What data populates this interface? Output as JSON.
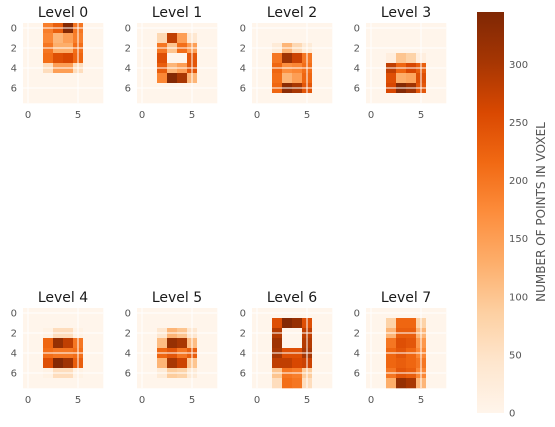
{
  "chart_data": {
    "type": "heatmap",
    "colormap": "Oranges",
    "colorbar_label": "NUMBER OF POINTS IN VOXEL",
    "colorbar_ticks": [
      0,
      50,
      100,
      150,
      200,
      250,
      300
    ],
    "vmin": 0,
    "vmax": 345,
    "grid": true,
    "grid_shape": [
      8,
      8
    ],
    "x_ticks": [
      0,
      5
    ],
    "y_ticks": [
      0,
      2,
      4,
      6
    ],
    "panels": [
      {
        "title": "Level 0",
        "values": [
          [
            0,
            0,
            190,
            230,
            340,
            200,
            0,
            0
          ],
          [
            0,
            0,
            180,
            120,
            150,
            190,
            0,
            0
          ],
          [
            0,
            0,
            200,
            130,
            130,
            210,
            0,
            0
          ],
          [
            0,
            0,
            210,
            250,
            260,
            220,
            0,
            0
          ],
          [
            0,
            0,
            60,
            150,
            150,
            60,
            0,
            0
          ],
          [
            0,
            0,
            0,
            0,
            0,
            0,
            0,
            0
          ],
          [
            0,
            0,
            0,
            0,
            0,
            0,
            0,
            0
          ],
          [
            0,
            0,
            0,
            0,
            0,
            0,
            0,
            0
          ]
        ]
      },
      {
        "title": "Level 1",
        "values": [
          [
            0,
            0,
            0,
            0,
            0,
            0,
            0,
            0
          ],
          [
            0,
            0,
            70,
            280,
            150,
            40,
            0,
            0
          ],
          [
            0,
            0,
            200,
            100,
            210,
            150,
            0,
            0
          ],
          [
            0,
            0,
            250,
            0,
            0,
            240,
            0,
            0
          ],
          [
            0,
            0,
            230,
            120,
            150,
            240,
            0,
            0
          ],
          [
            0,
            0,
            180,
            340,
            300,
            120,
            0,
            0
          ],
          [
            0,
            0,
            0,
            0,
            0,
            0,
            0,
            0
          ],
          [
            0,
            0,
            0,
            0,
            0,
            0,
            0,
            0
          ]
        ]
      },
      {
        "title": "Level 2",
        "values": [
          [
            0,
            0,
            0,
            0,
            0,
            0,
            0,
            0
          ],
          [
            0,
            0,
            0,
            0,
            0,
            0,
            0,
            0
          ],
          [
            0,
            0,
            30,
            120,
            70,
            30,
            0,
            0
          ],
          [
            0,
            0,
            200,
            310,
            270,
            200,
            0,
            0
          ],
          [
            0,
            0,
            220,
            170,
            180,
            210,
            0,
            0
          ],
          [
            0,
            0,
            210,
            120,
            150,
            220,
            0,
            0
          ],
          [
            0,
            0,
            220,
            330,
            300,
            240,
            0,
            0
          ],
          [
            0,
            0,
            0,
            0,
            0,
            0,
            0,
            0
          ]
        ]
      },
      {
        "title": "Level 3",
        "values": [
          [
            0,
            0,
            0,
            0,
            0,
            0,
            0,
            0
          ],
          [
            0,
            0,
            0,
            0,
            0,
            0,
            0,
            0
          ],
          [
            0,
            0,
            0,
            0,
            0,
            0,
            0,
            0
          ],
          [
            0,
            0,
            20,
            100,
            80,
            20,
            0,
            0
          ],
          [
            0,
            0,
            280,
            220,
            260,
            230,
            0,
            0
          ],
          [
            0,
            0,
            250,
            130,
            140,
            250,
            0,
            0
          ],
          [
            0,
            0,
            260,
            340,
            310,
            240,
            0,
            0
          ],
          [
            0,
            0,
            0,
            0,
            0,
            0,
            0,
            0
          ]
        ]
      },
      {
        "title": "Level 4",
        "values": [
          [
            0,
            0,
            0,
            0,
            0,
            0,
            0,
            0
          ],
          [
            0,
            0,
            0,
            0,
            0,
            0,
            0,
            0
          ],
          [
            0,
            0,
            10,
            60,
            60,
            10,
            0,
            0
          ],
          [
            0,
            0,
            220,
            320,
            280,
            200,
            0,
            0
          ],
          [
            0,
            0,
            210,
            200,
            200,
            210,
            0,
            0
          ],
          [
            0,
            0,
            250,
            340,
            310,
            230,
            0,
            0
          ],
          [
            0,
            0,
            10,
            60,
            60,
            10,
            0,
            0
          ],
          [
            0,
            0,
            0,
            0,
            0,
            0,
            0,
            0
          ]
        ]
      },
      {
        "title": "Level 5",
        "values": [
          [
            0,
            0,
            0,
            0,
            0,
            0,
            0,
            0
          ],
          [
            0,
            0,
            0,
            0,
            0,
            0,
            0,
            0
          ],
          [
            0,
            0,
            40,
            120,
            100,
            40,
            0,
            0
          ],
          [
            0,
            0,
            110,
            320,
            300,
            110,
            0,
            0
          ],
          [
            0,
            0,
            220,
            240,
            200,
            230,
            0,
            0
          ],
          [
            0,
            0,
            120,
            300,
            270,
            100,
            0,
            0
          ],
          [
            0,
            0,
            30,
            90,
            80,
            30,
            0,
            0
          ],
          [
            0,
            0,
            0,
            0,
            0,
            0,
            0,
            0
          ]
        ]
      },
      {
        "title": "Level 6",
        "values": [
          [
            0,
            0,
            0,
            0,
            0,
            0,
            0,
            0
          ],
          [
            0,
            0,
            250,
            340,
            320,
            250,
            0,
            0
          ],
          [
            0,
            0,
            290,
            0,
            0,
            280,
            0,
            0
          ],
          [
            0,
            0,
            310,
            0,
            0,
            290,
            0,
            0
          ],
          [
            0,
            0,
            300,
            250,
            250,
            300,
            0,
            0
          ],
          [
            0,
            0,
            280,
            280,
            260,
            270,
            0,
            0
          ],
          [
            0,
            0,
            100,
            200,
            190,
            90,
            0,
            0
          ],
          [
            0,
            0,
            60,
            210,
            200,
            60,
            0,
            0
          ]
        ]
      },
      {
        "title": "Level 7",
        "values": [
          [
            0,
            0,
            0,
            0,
            0,
            0,
            0,
            0
          ],
          [
            0,
            0,
            80,
            220,
            220,
            80,
            0,
            0
          ],
          [
            0,
            0,
            120,
            230,
            230,
            120,
            0,
            0
          ],
          [
            0,
            0,
            200,
            250,
            240,
            160,
            0,
            0
          ],
          [
            0,
            0,
            220,
            240,
            220,
            180,
            0,
            0
          ],
          [
            0,
            0,
            220,
            230,
            220,
            200,
            0,
            0
          ],
          [
            0,
            0,
            200,
            240,
            230,
            180,
            0,
            0
          ],
          [
            0,
            0,
            130,
            320,
            300,
            120,
            0,
            0
          ]
        ]
      }
    ]
  }
}
